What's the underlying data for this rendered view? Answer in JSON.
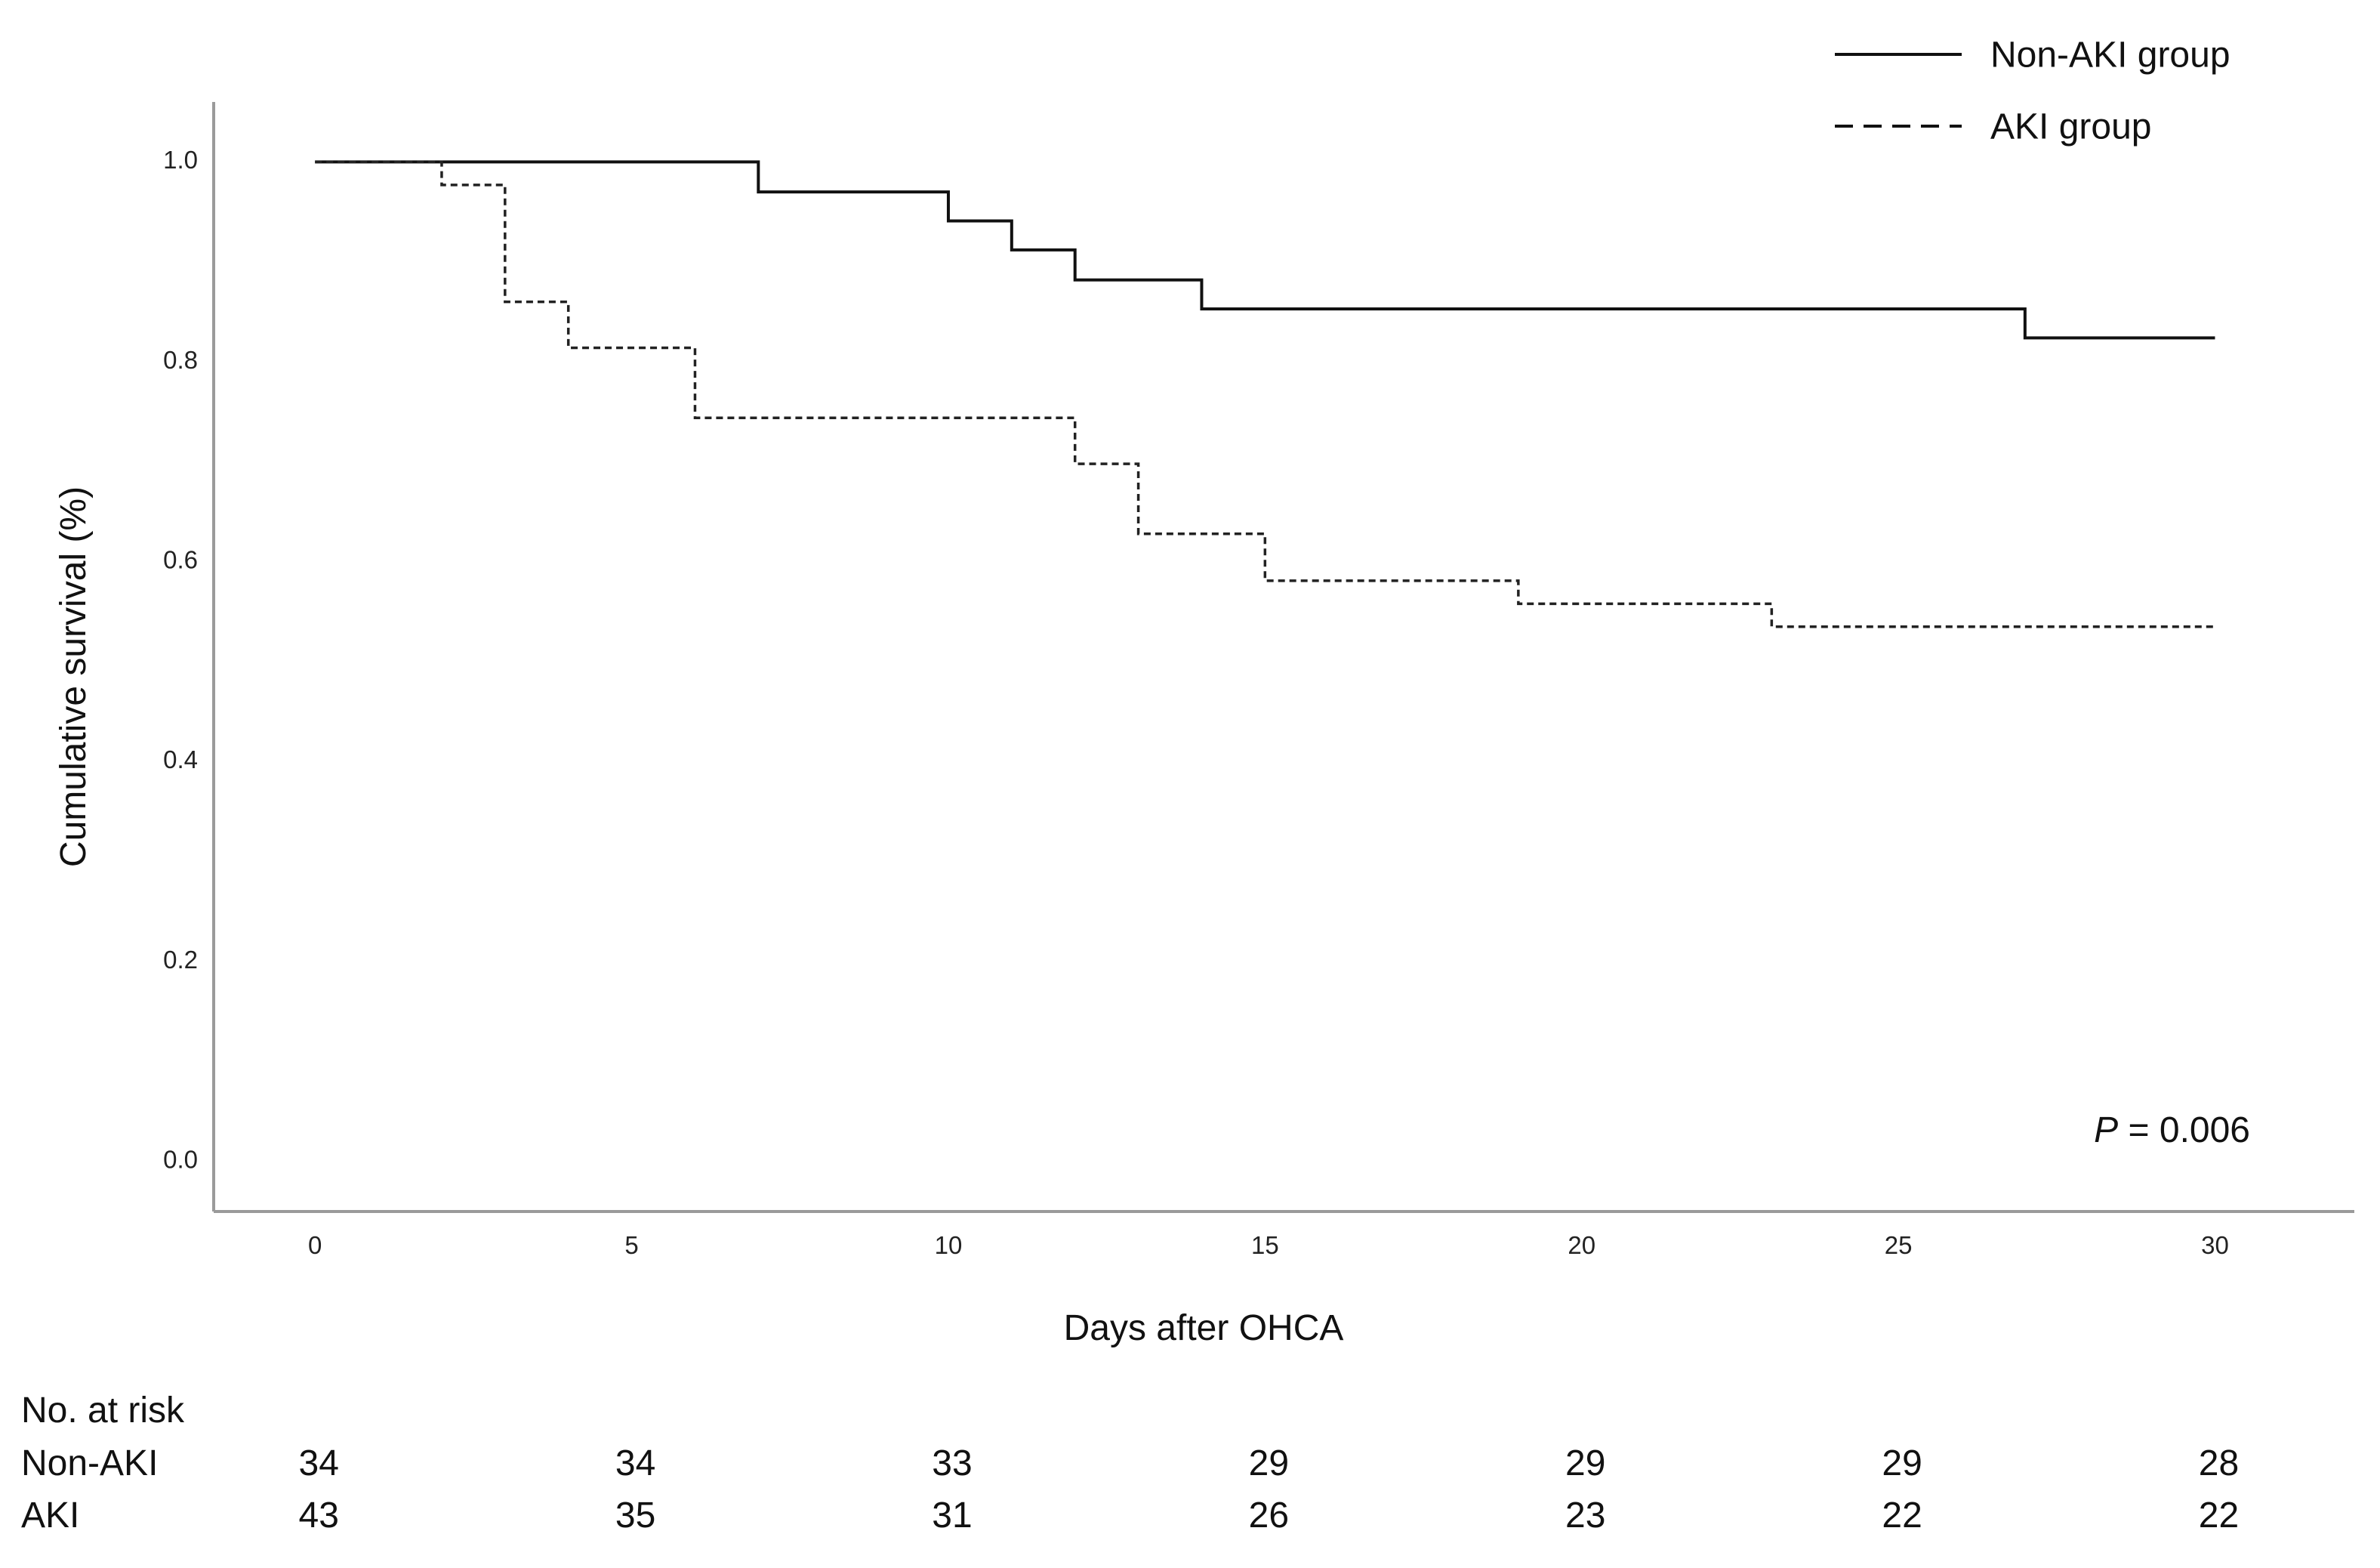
{
  "chart_data": {
    "type": "line",
    "subtype": "kaplan-meier step",
    "xlabel": "Days after OHCA",
    "ylabel": "Cumulative survival (%)",
    "xlim": [
      -1.6,
      32.2
    ],
    "ylim": [
      -0.05,
      1.06
    ],
    "x_ticks": [
      0,
      5,
      10,
      15,
      20,
      25,
      30
    ],
    "x_tick_labels": [
      "0",
      "5",
      "10",
      "15",
      "20",
      "25",
      "30"
    ],
    "y_ticks": [
      0.0,
      0.2,
      0.4,
      0.6,
      0.8,
      1.0
    ],
    "y_tick_labels": [
      "0.0",
      "0.2",
      "0.4",
      "0.6",
      "0.8",
      "1.0"
    ],
    "grid": false,
    "legend_position": "top-right",
    "annotation": {
      "italic": "P",
      "rest": " = 0.006"
    },
    "series": [
      {
        "name": "Non-AKI group",
        "style": "solid",
        "color": "#111111",
        "points": [
          [
            0,
            1.0
          ],
          [
            7,
            0.97
          ],
          [
            10,
            0.941
          ],
          [
            11,
            0.912
          ],
          [
            12,
            0.882
          ],
          [
            14,
            0.853
          ],
          [
            27,
            0.824
          ],
          [
            30,
            0.824
          ]
        ]
      },
      {
        "name": "AKI group",
        "style": "dashed",
        "color": "#222222",
        "points": [
          [
            0,
            1.0
          ],
          [
            2,
            0.977
          ],
          [
            3,
            0.86
          ],
          [
            4,
            0.814
          ],
          [
            6,
            0.744
          ],
          [
            12,
            0.698
          ],
          [
            13,
            0.628
          ],
          [
            15,
            0.581
          ],
          [
            19,
            0.558
          ],
          [
            23,
            0.535
          ],
          [
            30,
            0.535
          ]
        ]
      }
    ],
    "risk_table": {
      "title": "No. at risk",
      "days": [
        0,
        5,
        10,
        15,
        20,
        25,
        30
      ],
      "rows": [
        {
          "label": "Non-AKI",
          "values": [
            34,
            34,
            33,
            29,
            29,
            29,
            28
          ]
        },
        {
          "label": "AKI",
          "values": [
            43,
            35,
            31,
            26,
            23,
            22,
            22
          ]
        }
      ]
    }
  }
}
